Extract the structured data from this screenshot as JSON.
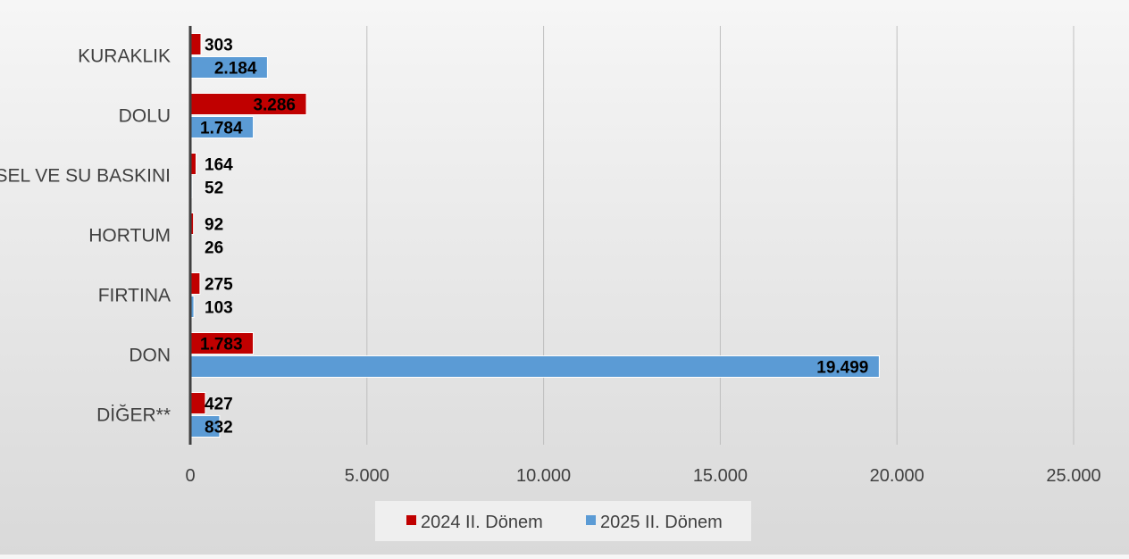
{
  "chart_data": {
    "type": "bar",
    "orientation": "horizontal",
    "categories": [
      "KURAKLIK",
      "DOLU",
      "SEL VE SU BASKINI",
      "HORTUM",
      "FIRTINA",
      "DON",
      "DİĞER**"
    ],
    "series": [
      {
        "name": "2024 II. Dönem",
        "color": "#c00000",
        "values": [
          303,
          3286,
          164,
          92,
          275,
          1783,
          427
        ],
        "labels": [
          "303",
          "3.286",
          "164",
          "92",
          "275",
          "1.783",
          "427"
        ]
      },
      {
        "name": "2025 II. Dönem",
        "color": "#5b9bd5",
        "values": [
          2184,
          1784,
          52,
          26,
          103,
          19499,
          832
        ],
        "labels": [
          "2.184",
          "1.784",
          "52",
          "26",
          "103",
          "19.499",
          "832"
        ]
      }
    ],
    "x_ticks": [
      0,
      5000,
      10000,
      15000,
      20000,
      25000
    ],
    "x_tick_labels": [
      "0",
      "5.000",
      "10.000",
      "15.000",
      "20.000",
      "25.000"
    ],
    "xlim": [
      0,
      25000
    ],
    "grid": true,
    "legend_position": "bottom"
  }
}
